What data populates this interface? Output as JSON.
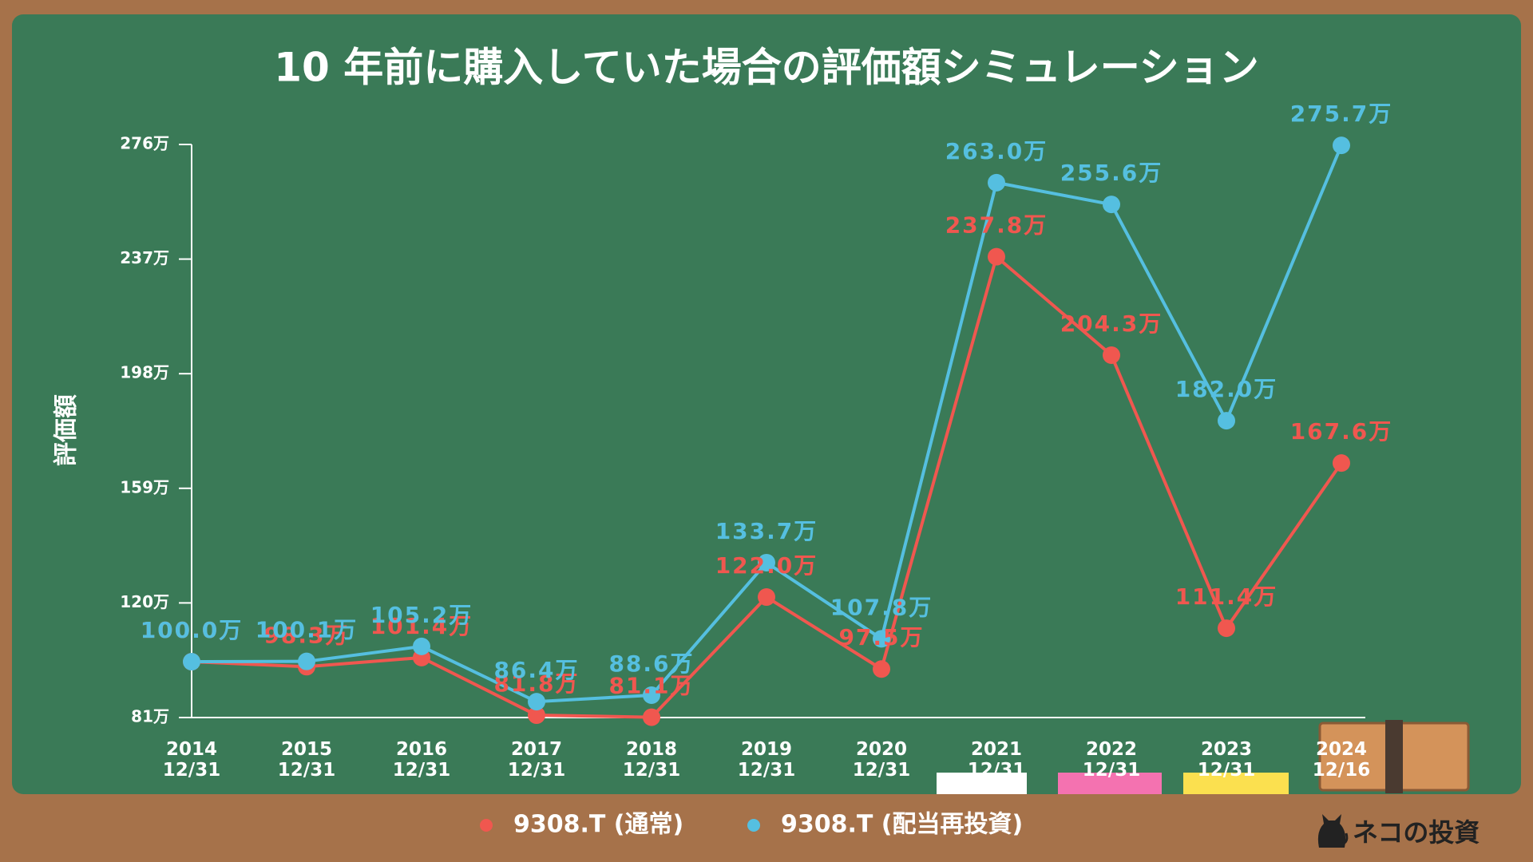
{
  "chart_data": {
    "type": "line",
    "title": "10 年前に購入していた場合の評価額シミュレーション",
    "y_label": "評価額",
    "categories": [
      "2014\n12/31",
      "2015\n12/31",
      "2016\n12/31",
      "2017\n12/31",
      "2018\n12/31",
      "2019\n12/31",
      "2020\n12/31",
      "2021\n12/31",
      "2022\n12/31",
      "2023\n12/31",
      "2024\n12/16"
    ],
    "series": [
      {
        "name": "9308.T (通常)",
        "color": "#f0574f",
        "values": [
          100.0,
          98.3,
          101.4,
          81.8,
          81.1,
          122.0,
          97.5,
          237.8,
          204.3,
          111.4,
          167.6
        ],
        "value_labels": [
          "100.0万",
          "98.3万",
          "101.4万",
          "81.8万",
          "81.1万",
          "122.0万",
          "97.5万",
          "237.8万",
          "204.3万",
          "111.4万",
          "167.6万"
        ]
      },
      {
        "name": "9308.T (配当再投資)",
        "color": "#55bfe0",
        "values": [
          100.0,
          100.1,
          105.2,
          86.4,
          88.6,
          133.7,
          107.8,
          263.0,
          255.6,
          182.0,
          275.7
        ],
        "value_labels": [
          "100.0万",
          "100.1万",
          "105.2万",
          "86.4万",
          "88.6万",
          "133.7万",
          "107.8万",
          "263.0万",
          "255.6万",
          "182.0万",
          "275.7万"
        ]
      }
    ],
    "ylim": [
      81,
      276
    ],
    "yticks": [
      {
        "value": 81,
        "label": "81万"
      },
      {
        "value": 120,
        "label": "120万"
      },
      {
        "value": 159,
        "label": "159万"
      },
      {
        "value": 198,
        "label": "198万"
      },
      {
        "value": 237,
        "label": "237万"
      },
      {
        "value": 276,
        "label": "276万"
      }
    ],
    "grid": false,
    "legend": "bottom"
  },
  "branding": "ネコの投資"
}
